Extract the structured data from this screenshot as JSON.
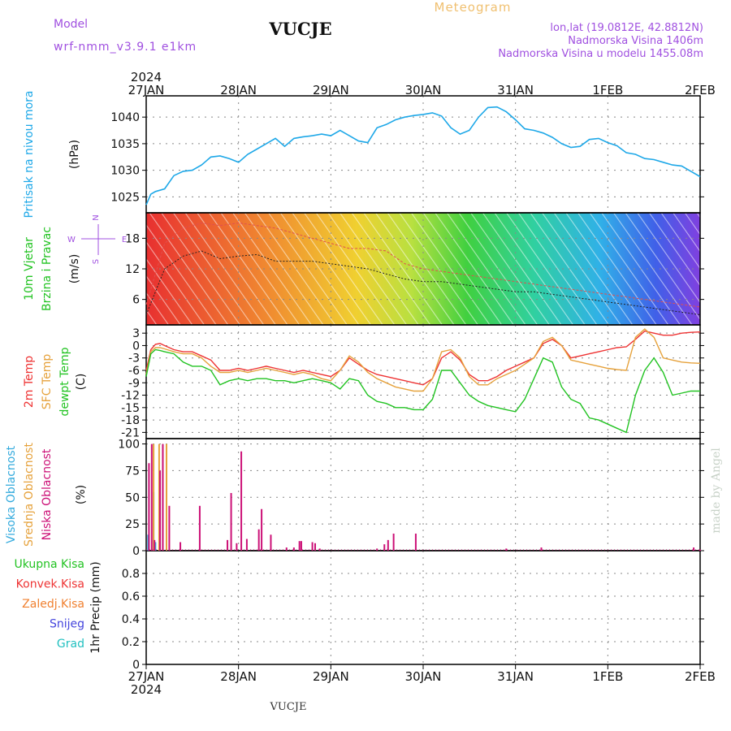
{
  "header": {
    "model_label": "Model",
    "model_name": "wrf-nmm_v3.9.1  e1km",
    "station": "VUCJE",
    "product": "Meteogram",
    "lonlat": "lon,lat (19.0812E, 42.8812N)",
    "elevation": "Nadmorska Visina 1406m",
    "model_elevation": "Nadmorska Visina u modelu 1455.08m",
    "year_top": "2024",
    "year_bottom": "2024",
    "footer_station": "VUCJE",
    "credit": "made by Angel"
  },
  "colors": {
    "pressure": "#1ea8e8",
    "wind_label": "#22c322",
    "temp2m": "#ee3333",
    "sfc": "#e6a23c",
    "dewpt": "#22c322",
    "high_cloud": "#33aadd",
    "mid_cloud": "#e6a23c",
    "low_cloud": "#cc1177",
    "compass": "#a050e0",
    "header_purple": "#a050e0",
    "product_orange": "#f0c070",
    "credit": "#c8d2c8"
  },
  "chart_data": [
    {
      "type": "line",
      "id": "pressure",
      "ylabel_lines": [
        "Pritisak na nivou mora",
        "(hPa)"
      ],
      "x_ticks": [
        "27JAN",
        "28JAN",
        "29JAN",
        "30JAN",
        "31JAN",
        "1FEB",
        "2FEB"
      ],
      "ylim": [
        1022,
        1044
      ],
      "y_ticks": [
        1025,
        1030,
        1035,
        1040
      ],
      "series": [
        {
          "x": [
            0,
            0.05,
            0.1,
            0.2,
            0.3,
            0.4,
            0.5,
            0.6,
            0.7,
            0.8,
            0.9,
            1,
            1.1,
            1.2,
            1.3,
            1.4,
            1.5,
            1.6,
            1.7,
            1.8,
            1.9,
            2,
            2.1,
            2.2,
            2.3,
            2.4,
            2.5,
            2.6,
            2.7,
            2.8,
            2.9,
            3,
            3.1,
            3.2,
            3.3,
            3.4,
            3.5,
            3.6,
            3.7,
            3.8,
            3.9,
            4,
            4.1,
            4.2,
            4.3,
            4.4,
            4.5,
            4.6,
            4.7,
            4.8,
            4.9,
            5,
            5.1,
            5.2,
            5.3,
            5.4,
            5.5,
            5.6,
            5.7,
            5.8,
            5.9,
            6
          ],
          "values": [
            1023.5,
            1025.5,
            1026,
            1026.5,
            1029,
            1029.8,
            1030,
            1031,
            1032.5,
            1032.7,
            1032.2,
            1031.5,
            1033,
            1034,
            1035,
            1036,
            1034.5,
            1036,
            1036.3,
            1036.5,
            1036.8,
            1036.5,
            1037.5,
            1036.5,
            1035.5,
            1035.2,
            1038,
            1038.6,
            1039.5,
            1040,
            1040.3,
            1040.5,
            1040.8,
            1040.2,
            1038,
            1036.8,
            1037.5,
            1040,
            1041.8,
            1041.9,
            1041,
            1039.5,
            1037.8,
            1037.5,
            1037,
            1036.2,
            1035,
            1034.3,
            1034.5,
            1035.8,
            1036,
            1035.2,
            1034.6,
            1033.3,
            1033,
            1032.2,
            1032,
            1031.5,
            1031,
            1030.8,
            1029.8,
            1028.8
          ]
        }
      ]
    },
    {
      "type": "scatter",
      "id": "wind",
      "ylabel_lines": [
        "10m Vjetar",
        "Brzina i Pravac",
        "(m/s)"
      ],
      "compass": {
        "w": "W",
        "n": "N",
        "s": "S",
        "e": "E"
      },
      "ylim": [
        1,
        23
      ],
      "y_ticks": [
        6,
        12,
        18
      ],
      "series": [
        {
          "name": "speed",
          "color": "#222222",
          "x": [
            0,
            0.2,
            0.4,
            0.5,
            0.6,
            0.8,
            1,
            1.2,
            1.4,
            1.6,
            1.8,
            2,
            2.2,
            2.4,
            2.6,
            2.8,
            3,
            3.2,
            3.4,
            3.6,
            3.8,
            4,
            4.2,
            4.4,
            4.6,
            4.8,
            5,
            5.2,
            5.4,
            5.6,
            5.8,
            6
          ],
          "values": [
            3,
            12,
            14.5,
            15,
            15.5,
            14,
            14.5,
            14.8,
            13.5,
            13.5,
            13.5,
            13,
            12.5,
            12,
            11,
            10,
            9.5,
            9.5,
            9,
            8.5,
            8,
            7.5,
            7.5,
            7,
            6.5,
            6,
            5.5,
            5,
            4.5,
            4,
            3.5,
            3
          ]
        },
        {
          "name": "gust",
          "color": "#e05050",
          "x": [
            0,
            0.2,
            0.4,
            0.6,
            0.8,
            1,
            1.2,
            1.4,
            1.6,
            1.8,
            2,
            2.2,
            2.4,
            2.6,
            2.8,
            3,
            3.2,
            3.4,
            3.6,
            3.8,
            4,
            4.2,
            4.4,
            4.6,
            4.8,
            5,
            5.2,
            5.4,
            5.6,
            5.8,
            6
          ],
          "values": [
            5,
            17,
            20,
            21,
            20.5,
            21,
            20.5,
            20,
            19,
            18,
            17,
            16,
            16,
            15.5,
            13,
            12,
            11.5,
            11,
            10.5,
            10,
            9.5,
            9,
            8.5,
            8,
            7.5,
            7,
            6.5,
            6,
            5.5,
            5,
            4.5
          ]
        }
      ]
    },
    {
      "type": "line",
      "id": "temperature",
      "ylabel_lines": [
        "2m Temp",
        "SFC Temp",
        "dewpt Temp",
        "(C)"
      ],
      "ylim": [
        -22.5,
        5
      ],
      "y_ticks": [
        3,
        0,
        -3,
        -6,
        -9,
        -12,
        -15,
        -18,
        -21
      ],
      "x": [
        0,
        0.05,
        0.1,
        0.15,
        0.2,
        0.3,
        0.4,
        0.5,
        0.6,
        0.7,
        0.8,
        0.9,
        1,
        1.1,
        1.2,
        1.3,
        1.4,
        1.5,
        1.6,
        1.7,
        1.8,
        1.9,
        2,
        2.1,
        2.2,
        2.3,
        2.4,
        2.5,
        2.6,
        2.7,
        2.8,
        2.9,
        3,
        3.1,
        3.2,
        3.3,
        3.4,
        3.5,
        3.6,
        3.7,
        3.8,
        3.9,
        4,
        4.1,
        4.2,
        4.3,
        4.4,
        4.5,
        4.6,
        4.7,
        4.8,
        4.9,
        5,
        5.1,
        5.2,
        5.3,
        5.4,
        5.5,
        5.6,
        5.7,
        5.8,
        5.9,
        6
      ],
      "series": [
        {
          "name": "2m Temp",
          "color": "#ee3333",
          "values": [
            -6,
            -1,
            0.3,
            0.5,
            0,
            -1,
            -1.5,
            -1.5,
            -2.5,
            -3.5,
            -6,
            -6,
            -5.5,
            -6,
            -5.5,
            -5,
            -5.5,
            -6,
            -6.5,
            -6,
            -6.5,
            -7,
            -7.5,
            -6,
            -3,
            -4.5,
            -6,
            -7,
            -7.5,
            -8,
            -8.5,
            -9,
            -9.5,
            -8,
            -3,
            -1.5,
            -3.5,
            -7,
            -8.5,
            -8.5,
            -7.5,
            -6,
            -5,
            -4,
            -3,
            0.5,
            1.5,
            0,
            -3,
            -2.5,
            -2,
            -1.5,
            -1,
            -0.5,
            -0.3,
            1.5,
            3.5,
            3,
            2.5,
            2.5,
            3,
            3.2,
            3.3
          ]
        },
        {
          "name": "SFC Temp",
          "color": "#e6a23c",
          "values": [
            -7,
            -1.5,
            -0.5,
            -0.5,
            -0.8,
            -1.5,
            -2,
            -2,
            -3,
            -5,
            -6.5,
            -6.5,
            -6,
            -6.5,
            -6,
            -5.5,
            -6,
            -6.5,
            -7,
            -6.5,
            -7,
            -8,
            -8.5,
            -6,
            -2.5,
            -4,
            -6.5,
            -8,
            -9,
            -10,
            -10.5,
            -11,
            -11,
            -8,
            -1.5,
            -1,
            -3,
            -7.5,
            -9.5,
            -9.5,
            -8,
            -7,
            -6,
            -4.5,
            -3,
            1,
            2,
            0,
            -3.5,
            -4,
            -4.5,
            -5,
            -5.5,
            -5.8,
            -6,
            2,
            4,
            2,
            -3,
            -3.5,
            -4,
            -4.2,
            -4.3
          ]
        },
        {
          "name": "dewpt Temp",
          "color": "#22c322",
          "values": [
            -7.5,
            -2,
            -1,
            -1.2,
            -1.5,
            -2,
            -4,
            -5,
            -5,
            -6,
            -9.5,
            -8.5,
            -8,
            -8.5,
            -8,
            -8,
            -8.5,
            -8.5,
            -9,
            -8.5,
            -8,
            -8.5,
            -9,
            -10.5,
            -8,
            -8.5,
            -12,
            -13.5,
            -14,
            -15,
            -15,
            -15.5,
            -15.5,
            -13,
            -6,
            -6,
            -9,
            -12,
            -13.5,
            -14.5,
            -15,
            -15.5,
            -16,
            -13,
            -8,
            -3,
            -4,
            -10,
            -13,
            -14,
            -17.5,
            -18,
            -19,
            -20,
            -21,
            -12,
            -6,
            -3,
            -6.5,
            -12,
            -11.5,
            -11,
            -11
          ]
        }
      ]
    },
    {
      "type": "bar",
      "id": "cloud",
      "ylabel_lines": [
        "Visoka Oblacnost",
        "Srednja Oblacnost",
        "Niska Oblacnost",
        "(%)"
      ],
      "ylim": [
        0,
        105
      ],
      "y_ticks": [
        0,
        25,
        50,
        75,
        100
      ],
      "series": [
        {
          "name": "Visoka Oblacnost",
          "color": "#33aadd",
          "x": [
            0.02,
            0.08,
            0.1
          ],
          "values": [
            15,
            55,
            8
          ]
        },
        {
          "name": "Srednja Oblacnost",
          "color": "#e6a23c",
          "x": [
            0.08,
            0.14,
            0.18,
            0.22
          ],
          "values": [
            100,
            100,
            100,
            100
          ]
        },
        {
          "name": "Niska Oblacnost",
          "color": "#cc1177",
          "x": [
            0.03,
            0.06,
            0.09,
            0.15,
            0.18,
            0.25,
            0.37,
            0.58,
            0.88,
            0.92,
            0.98,
            1.03,
            1.09,
            1.22,
            1.25,
            1.35,
            1.52,
            1.6,
            1.66,
            1.68,
            1.8,
            1.83,
            1.88,
            2.5,
            2.58,
            2.62,
            2.68,
            2.92,
            3.9,
            4.28,
            5.93,
            6.0
          ],
          "values": [
            82,
            100,
            10,
            75,
            100,
            42,
            8,
            42,
            10,
            54,
            7,
            93,
            11,
            20,
            39,
            15,
            3,
            3,
            9,
            9,
            8,
            7,
            2,
            2,
            6,
            10,
            16,
            16,
            2,
            3,
            3,
            1
          ]
        }
      ]
    },
    {
      "type": "bar",
      "id": "precip",
      "ylabel_lines": [
        "1hr Precip (mm)"
      ],
      "legend": [
        {
          "name": "Ukupna Kisa",
          "color": "#22c322"
        },
        {
          "name": "Konvek.Kisa",
          "color": "#ee3333"
        },
        {
          "name": "Zaledj.Kisa",
          "color": "#f08030"
        },
        {
          "name": "Snijeg",
          "color": "#4444dd"
        },
        {
          "name": "Grad",
          "color": "#22c0c0"
        }
      ],
      "ylim": [
        0,
        1.0
      ],
      "y_ticks": [
        0,
        0.2,
        0.4,
        0.6,
        0.8
      ],
      "series": [
        {
          "name": "Ukupna Kisa",
          "values": []
        }
      ]
    }
  ]
}
